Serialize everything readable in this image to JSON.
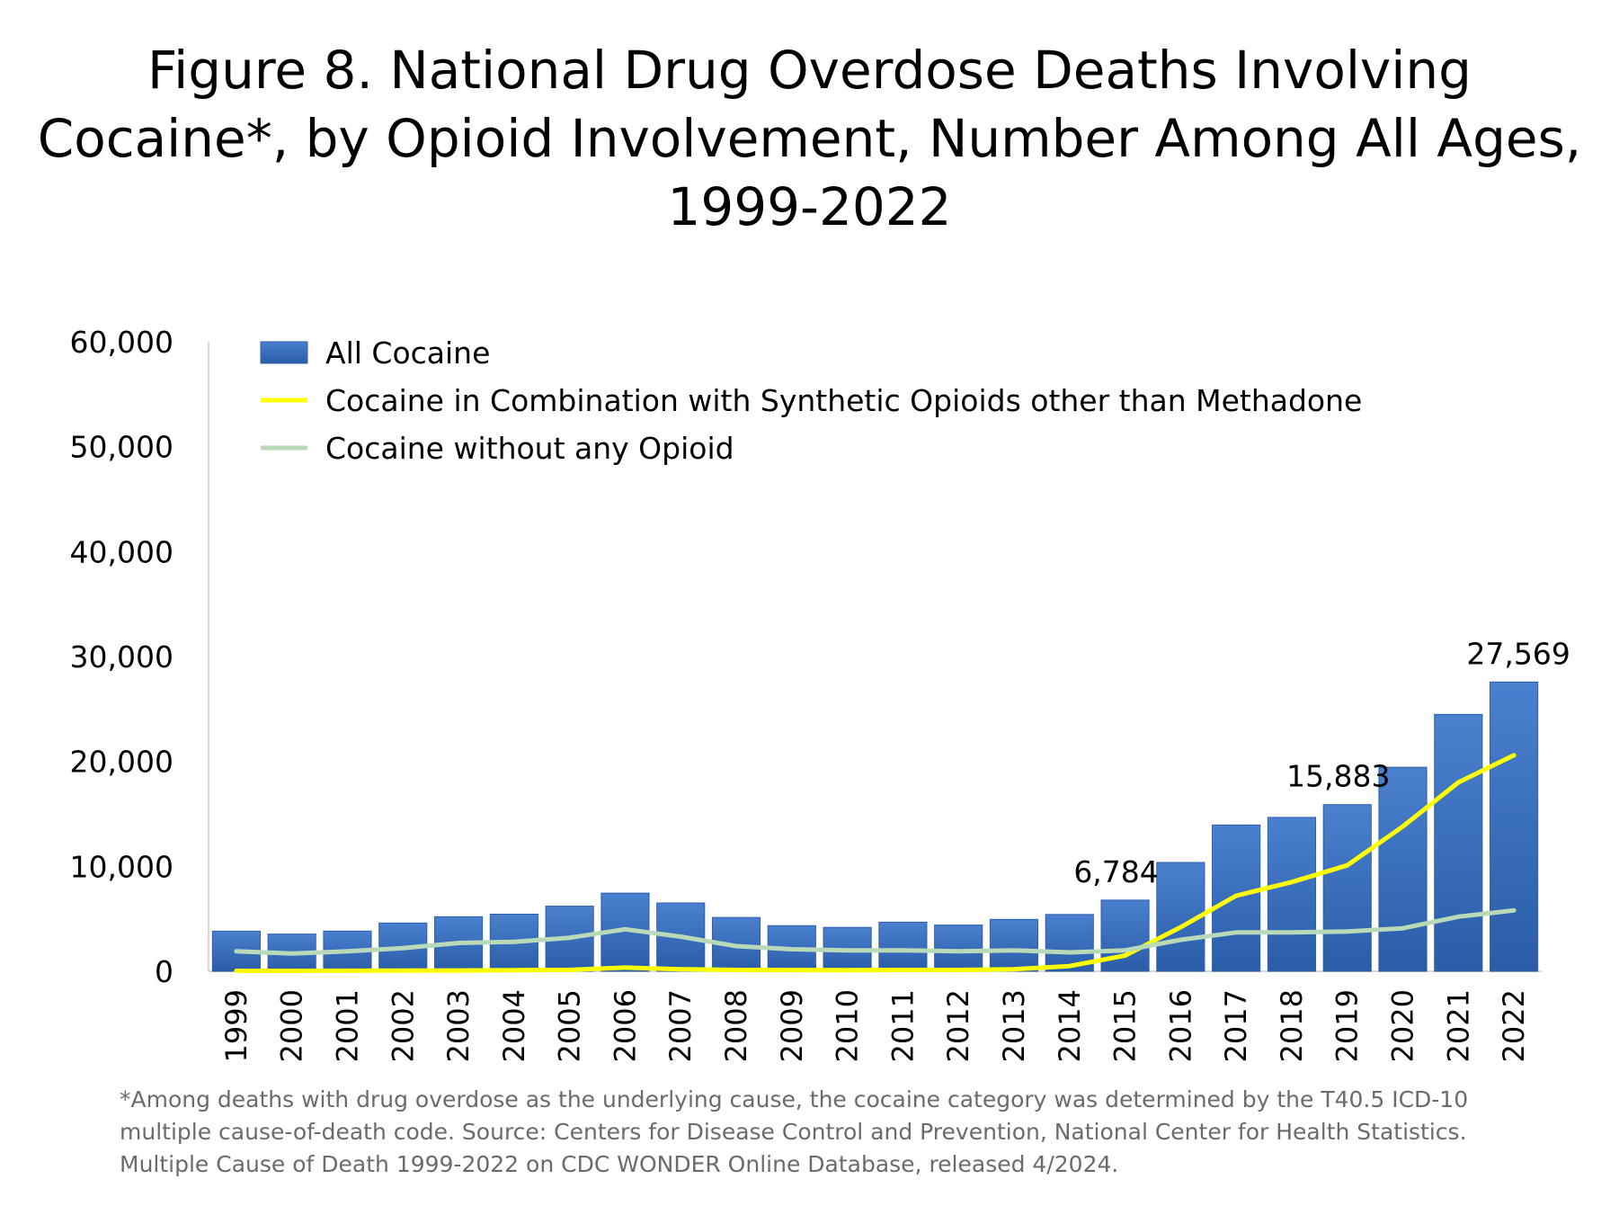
{
  "chart_data": {
    "type": "bar",
    "title_lines": [
      "Figure 8. National Drug Overdose Deaths Involving",
      "Cocaine*, by Opioid Involvement, Number Among All Ages,",
      "1999-2022"
    ],
    "categories": [
      "1999",
      "2000",
      "2001",
      "2002",
      "2003",
      "2004",
      "2005",
      "2006",
      "2007",
      "2008",
      "2009",
      "2010",
      "2011",
      "2012",
      "2013",
      "2014",
      "2015",
      "2016",
      "2017",
      "2018",
      "2019",
      "2020",
      "2021",
      "2022"
    ],
    "series": [
      {
        "name": "All Cocaine",
        "kind": "bar",
        "color": "#3a6fc0",
        "values": [
          3822,
          3544,
          3833,
          4599,
          5199,
          5443,
          6208,
          7448,
          6512,
          5129,
          4350,
          4183,
          4681,
          4404,
          4944,
          5415,
          6784,
          10375,
          13942,
          14666,
          15883,
          19447,
          24486,
          27569
        ]
      },
      {
        "name": "Cocaine in Combination with Synthetic Opioids other than Methadone",
        "kind": "line",
        "color": "#ffff00",
        "values": [
          40,
          40,
          50,
          60,
          80,
          110,
          140,
          350,
          200,
          130,
          120,
          110,
          130,
          130,
          200,
          500,
          1500,
          4200,
          7200,
          8500,
          10100,
          13800,
          18000,
          20600
        ]
      },
      {
        "name": "Cocaine without any Opioid",
        "kind": "line",
        "color": "#b9d9b9",
        "values": [
          1900,
          1700,
          1900,
          2200,
          2700,
          2800,
          3200,
          4000,
          3300,
          2400,
          2100,
          2000,
          2000,
          1900,
          2000,
          1800,
          2000,
          3000,
          3700,
          3700,
          3800,
          4100,
          5200,
          5800
        ]
      }
    ],
    "data_labels": [
      {
        "category": "2015",
        "value": 6784,
        "text": "6,784"
      },
      {
        "category": "2019",
        "value": 15883,
        "text": "15,883"
      },
      {
        "category": "2022",
        "value": 27569,
        "text": "27,569"
      }
    ],
    "yticks": [
      "0",
      "10,000",
      "20,000",
      "30,000",
      "40,000",
      "50,000",
      "60,000"
    ],
    "ylim": [
      0,
      60000
    ],
    "legend_position": "top-left",
    "grid": false
  },
  "footnote_lines": [
    "*Among deaths with drug overdose as the underlying cause, the cocaine category was determined by the T40.5 ICD-10",
    "multiple cause-of-death code. Source: Centers for Disease Control and Prevention, National Center for Health Statistics.",
    "Multiple Cause of Death 1999-2022 on CDC WONDER Online Database, released 4/2024."
  ]
}
